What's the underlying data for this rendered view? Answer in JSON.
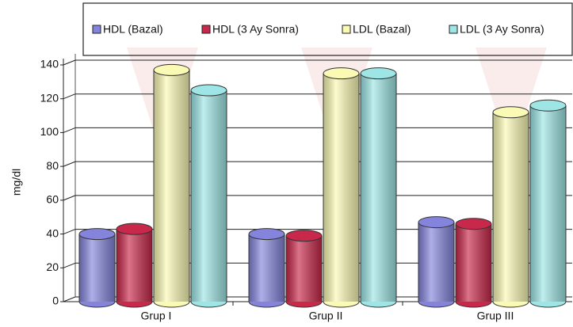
{
  "chart_data": {
    "type": "bar",
    "y_label": "mg/dl",
    "categories": [
      "Grup I",
      "Grup II",
      "Grup III"
    ],
    "series": [
      {
        "name": "HDL (Bazal)",
        "color": "#8484dc",
        "values": [
          40,
          40,
          47
        ]
      },
      {
        "name": "HDL (3 Ay Sonra)",
        "color": "#c8284a",
        "values": [
          43,
          39,
          46
        ]
      },
      {
        "name": "LDL (Bazal)",
        "color": "#fafab4",
        "values": [
          137,
          135,
          112
        ]
      },
      {
        "name": "LDL (3 Ay Sonra)",
        "color": "#9ee6e6",
        "values": [
          125,
          135,
          116
        ]
      }
    ],
    "ylim": [
      0,
      140
    ],
    "yticks": [
      0,
      20,
      40,
      60,
      80,
      100,
      120,
      140
    ],
    "grid": true,
    "legend": "top"
  }
}
